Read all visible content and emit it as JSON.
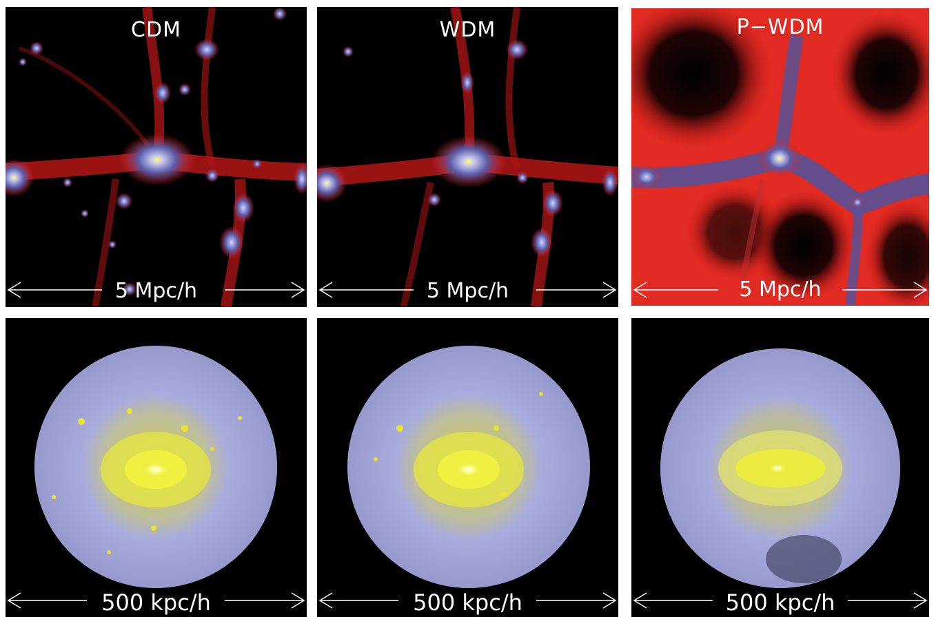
{
  "panels_top": [
    {
      "label": "CDM",
      "scale": "5 Mpc/h"
    },
    {
      "label": "WDM",
      "scale": "5 Mpc/h"
    },
    {
      "label": "P−WDM",
      "scale": "5 Mpc/h"
    }
  ],
  "panels_bottom": [
    {
      "scale": "500 kpc/h"
    },
    {
      "scale": "500 kpc/h"
    },
    {
      "scale": "500 kpc/h"
    }
  ],
  "colors": {
    "background": "#000000",
    "filament_red": "#e0201c",
    "halo_blue": "#8a8cc8",
    "core_yellow": "#e8e800",
    "core_white": "#ffffff"
  }
}
